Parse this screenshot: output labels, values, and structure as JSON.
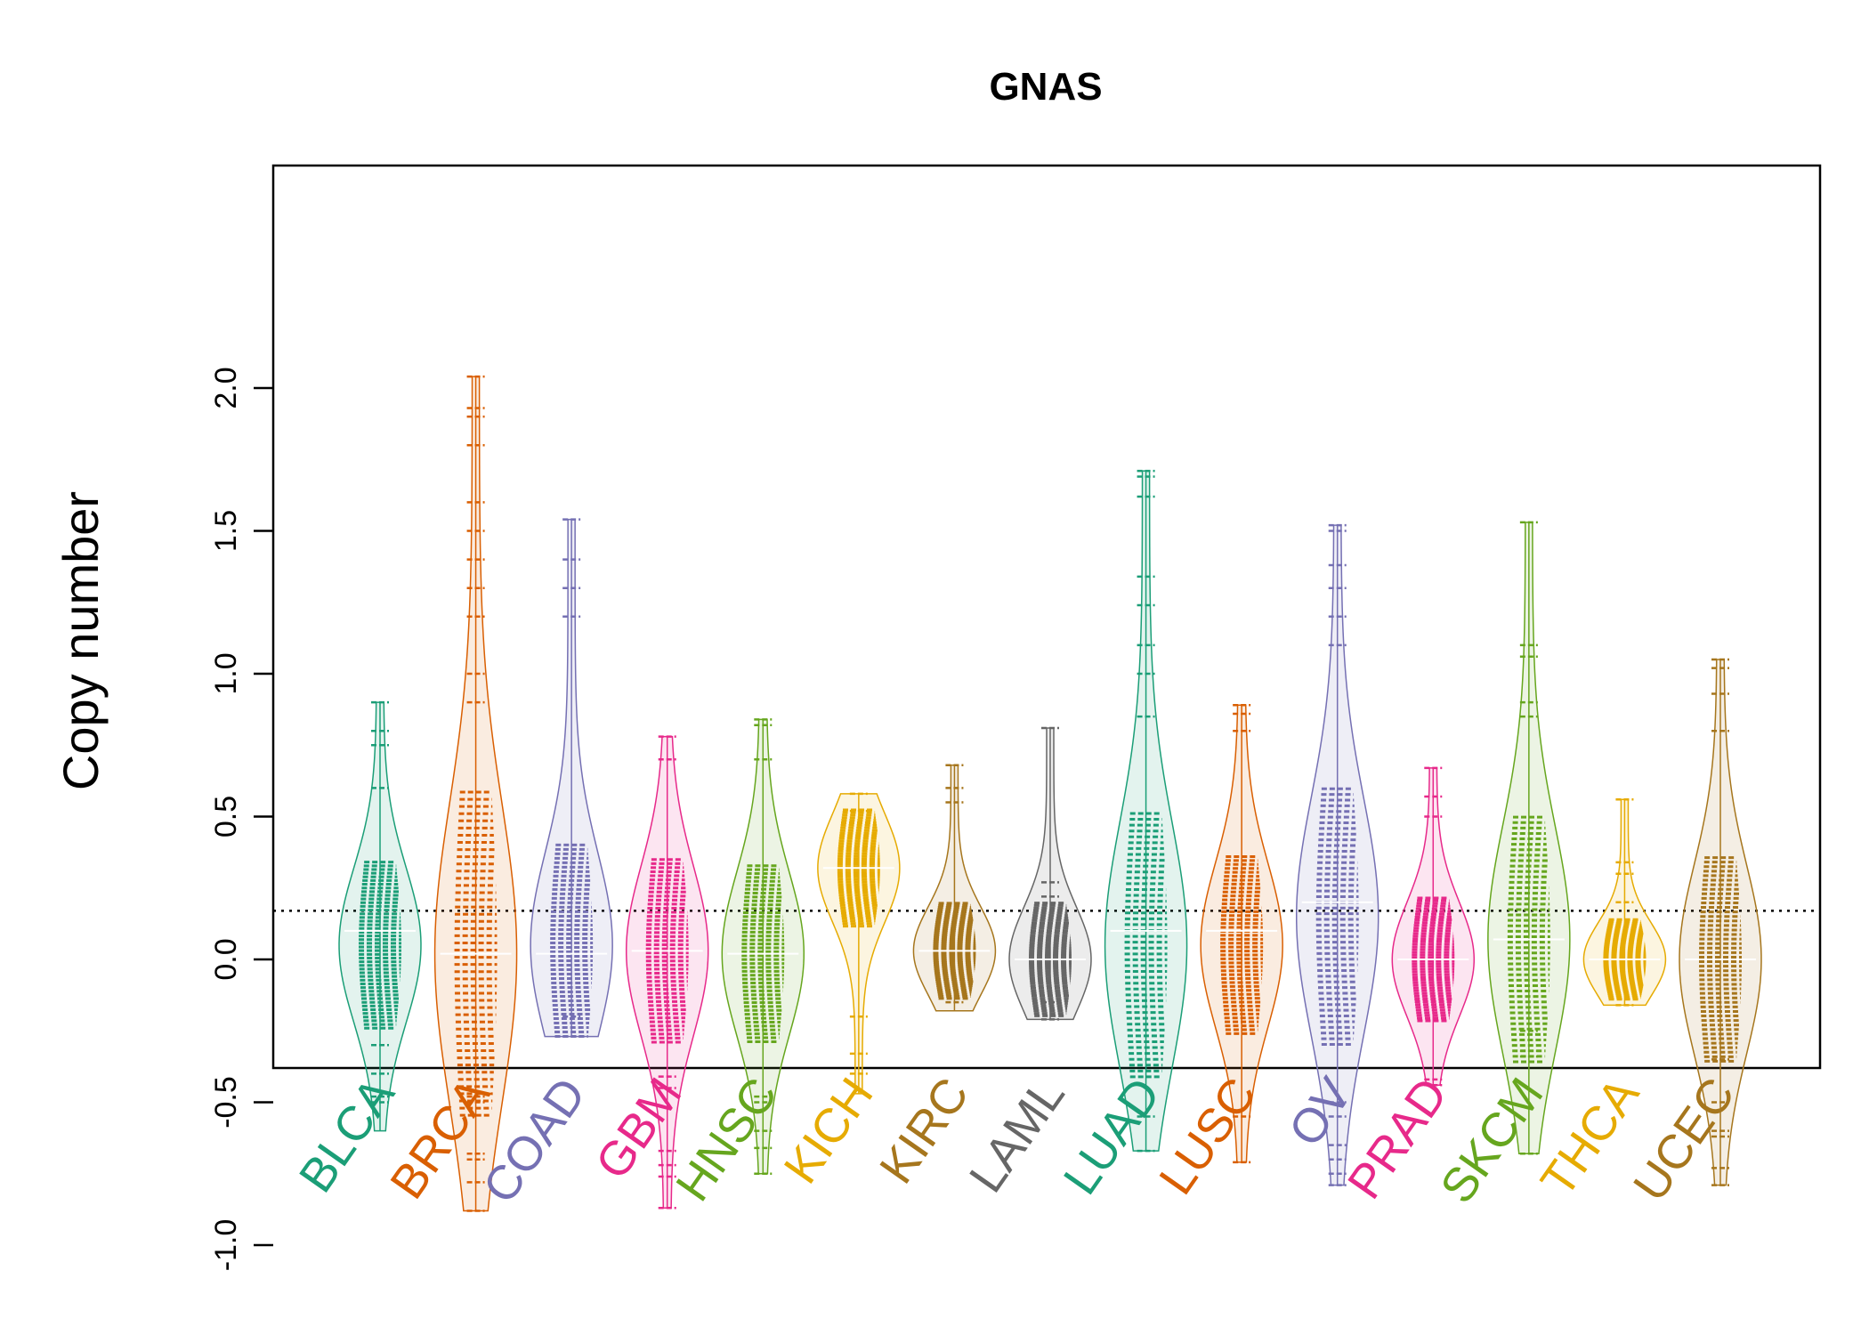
{
  "chart_data": {
    "type": "beanplot",
    "title": "GNAS",
    "ylabel": "Copy number",
    "xlabel": "",
    "ylim": [
      -1.0,
      2.15
    ],
    "yticks": [
      -1.0,
      -0.5,
      0.0,
      0.5,
      1.0,
      1.5,
      2.0
    ],
    "ytick_labels": [
      "-1.0",
      "-0.5",
      "0.0",
      "0.5",
      "1.0",
      "1.5",
      "2.0"
    ],
    "reference_line": 0.17,
    "categories": [
      {
        "name": "BLCA",
        "color": "#1b9e77",
        "min": -0.6,
        "max": 0.9,
        "median": 0.1,
        "peak": 0.05,
        "extra": [
          -0.5,
          -0.48,
          -0.4,
          -0.3,
          0.6,
          0.75,
          0.8,
          0.9
        ]
      },
      {
        "name": "BRCA",
        "color": "#d95f02",
        "min": -0.88,
        "max": 2.04,
        "median": 0.02,
        "peak": 0.02,
        "extra": [
          -0.88,
          -0.78,
          -0.7,
          -0.68,
          -0.5,
          -0.48,
          0.9,
          1.0,
          1.2,
          1.3,
          1.4,
          1.5,
          1.6,
          1.8,
          1.9,
          1.93,
          2.04
        ]
      },
      {
        "name": "COAD",
        "color": "#7570b3",
        "min": -0.27,
        "max": 1.54,
        "median": 0.02,
        "peak": 0.05,
        "extra": [
          -0.27,
          -0.2,
          1.2,
          1.3,
          1.4,
          1.54
        ]
      },
      {
        "name": "GBM",
        "color": "#e7298a",
        "min": -0.87,
        "max": 0.78,
        "median": 0.03,
        "peak": 0.03,
        "extra": [
          -0.87,
          -0.76,
          -0.72,
          -0.67,
          -0.45,
          -0.41,
          0.7,
          0.78
        ]
      },
      {
        "name": "HNSC",
        "color": "#66a61e",
        "min": -0.75,
        "max": 0.84,
        "median": 0.02,
        "peak": 0.02,
        "extra": [
          -0.75,
          -0.66,
          -0.6,
          -0.5,
          -0.48,
          0.7,
          0.82,
          0.84
        ]
      },
      {
        "name": "KICH",
        "color": "#e6ab02",
        "min": -0.47,
        "max": 0.58,
        "median": 0.32,
        "peak": 0.32,
        "extra": [
          -0.4,
          -0.33,
          -0.2,
          0.52,
          0.58
        ]
      },
      {
        "name": "KIRC",
        "color": "#a6761d",
        "min": -0.18,
        "max": 0.68,
        "median": 0.03,
        "peak": 0.03,
        "extra": [
          -0.15,
          0.55,
          0.6,
          0.68
        ]
      },
      {
        "name": "LAML",
        "color": "#666666",
        "min": -0.21,
        "max": 0.81,
        "median": 0.0,
        "peak": 0.0,
        "extra": [
          -0.21,
          -0.15,
          0.22,
          0.27,
          0.81
        ]
      },
      {
        "name": "LUAD",
        "color": "#1b9e77",
        "min": -0.67,
        "max": 1.71,
        "median": 0.1,
        "peak": 0.05,
        "extra": [
          -0.67,
          -0.55,
          0.85,
          1.0,
          1.1,
          1.24,
          1.34,
          1.62,
          1.69,
          1.71
        ]
      },
      {
        "name": "LUSC",
        "color": "#d95f02",
        "min": -0.71,
        "max": 0.89,
        "median": 0.1,
        "peak": 0.05,
        "extra": [
          -0.71,
          -0.55,
          0.8,
          0.86,
          0.89
        ]
      },
      {
        "name": "OV",
        "color": "#7570b3",
        "min": -0.79,
        "max": 1.52,
        "median": 0.2,
        "peak": 0.15,
        "extra": [
          -0.79,
          -0.75,
          -0.7,
          -0.65,
          -0.55,
          -0.5,
          1.1,
          1.2,
          1.3,
          1.38,
          1.5,
          1.52
        ]
      },
      {
        "name": "PRAD",
        "color": "#e7298a",
        "min": -0.44,
        "max": 0.67,
        "median": 0.0,
        "peak": 0.0,
        "extra": [
          -0.44,
          -0.42,
          0.5,
          0.57,
          0.67
        ]
      },
      {
        "name": "SKCM",
        "color": "#66a61e",
        "min": -0.68,
        "max": 1.53,
        "median": 0.07,
        "peak": 0.07,
        "extra": [
          -0.68,
          -0.34,
          -0.32,
          -0.25,
          0.85,
          0.9,
          1.06,
          1.1,
          1.53
        ]
      },
      {
        "name": "THCA",
        "color": "#e6ab02",
        "min": -0.16,
        "max": 0.56,
        "median": 0.0,
        "peak": 0.0,
        "extra": [
          -0.16,
          0.2,
          0.3,
          0.34,
          0.56
        ]
      },
      {
        "name": "UCEC",
        "color": "#a6761d",
        "min": -0.79,
        "max": 1.05,
        "median": 0.0,
        "peak": 0.0,
        "extra": [
          -0.79,
          -0.73,
          -0.62,
          -0.6,
          -0.5,
          -0.35,
          0.8,
          0.93,
          1.02,
          1.05
        ]
      }
    ]
  }
}
